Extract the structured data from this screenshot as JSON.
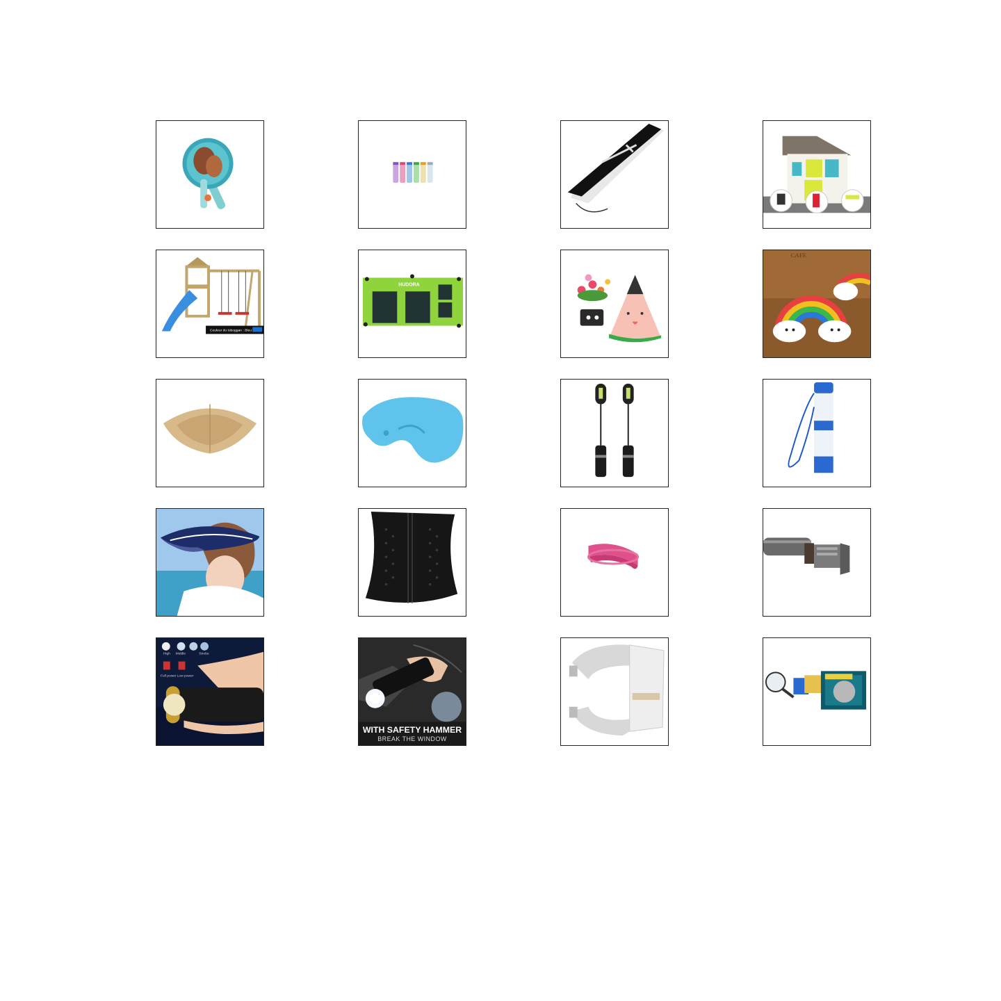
{
  "products": [
    {
      "icon": "beach-paddle-set-icon"
    },
    {
      "icon": "bubble-tubes-icon"
    },
    {
      "icon": "umbrella-carry-bag-icon"
    },
    {
      "icon": "kids-playhouse-icon"
    },
    {
      "icon": "swing-set-slide-icon",
      "label": "Couleur du toboggan : Bleu"
    },
    {
      "icon": "green-mesh-organizer-icon",
      "label": "HUDORA"
    },
    {
      "icon": "watermelon-planter-icon"
    },
    {
      "icon": "rainbow-cloud-lamp-icon",
      "label": "CAFE"
    },
    {
      "icon": "sand-pile-icon"
    },
    {
      "icon": "inflatable-neck-pillow-icon"
    },
    {
      "icon": "led-grill-lights-icon"
    },
    {
      "icon": "water-filter-straw-icon"
    },
    {
      "icon": "sun-visor-hat-icon"
    },
    {
      "icon": "waist-trainer-icon"
    },
    {
      "icon": "pink-headband-icon"
    },
    {
      "icon": "tactical-flashlight-icon"
    },
    {
      "icon": "led-flashlight-hand-icon",
      "labels": [
        "High",
        "Middle",
        "Strobe",
        "Full power",
        "Low power"
      ]
    },
    {
      "icon": "safety-hammer-flashlight-icon",
      "label": "WITH SAFETY HAMMER",
      "sublabel": "BREAK THE WINDOW"
    },
    {
      "icon": "watch-band-icon"
    },
    {
      "icon": "magnifier-kit-icon"
    }
  ],
  "colors": {
    "tile_border": "#222222",
    "page_background": "#ffffff"
  }
}
